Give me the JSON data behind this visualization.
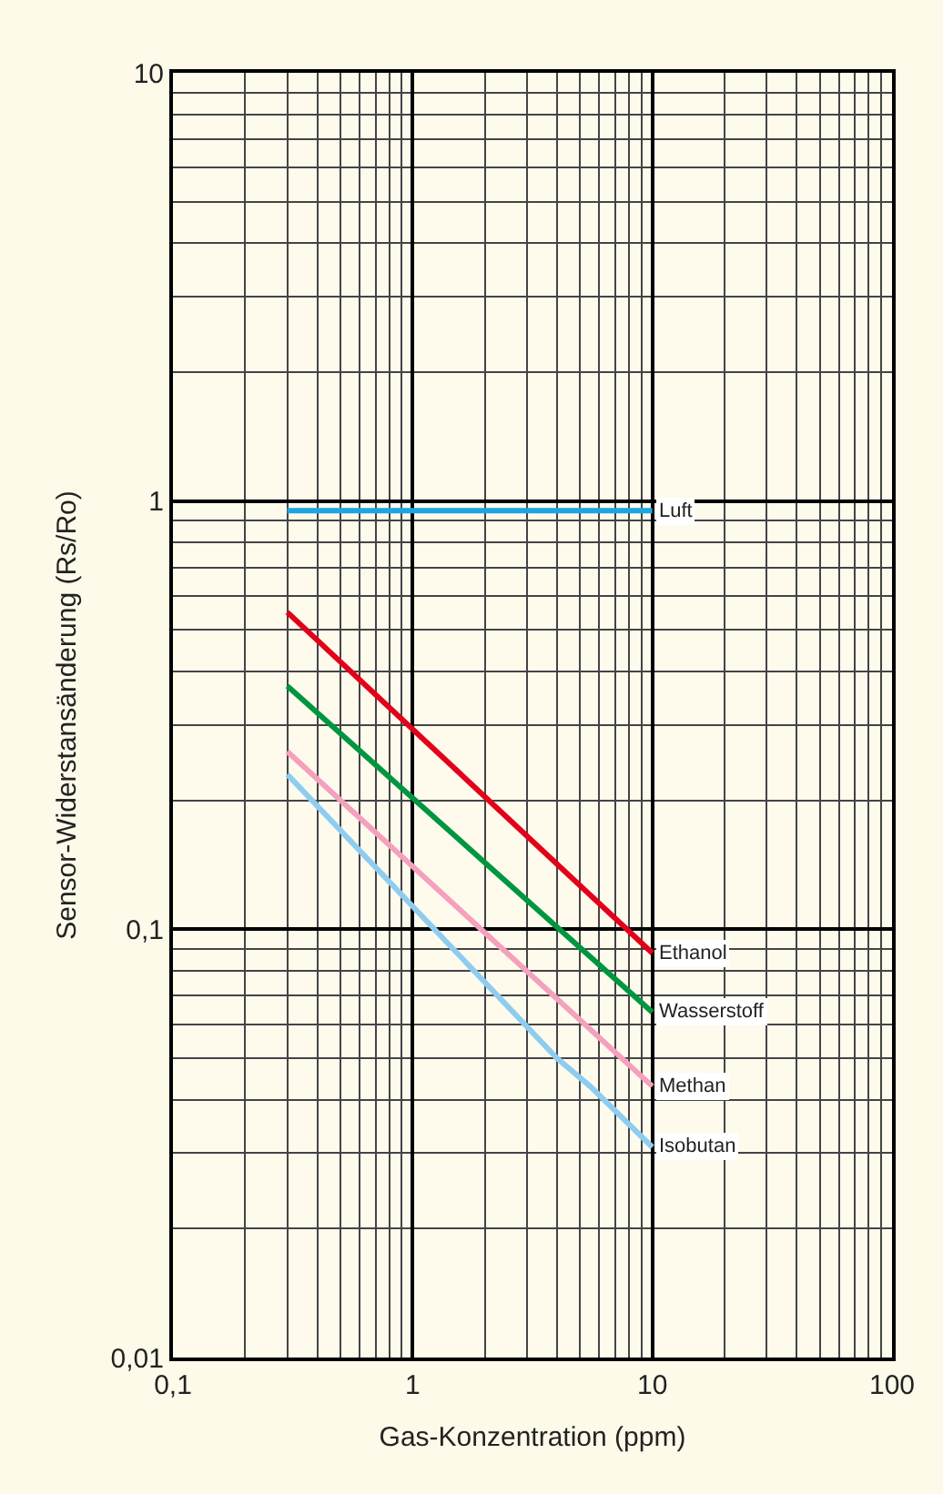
{
  "chart_data": {
    "type": "line",
    "xlabel": "Gas-Konzentration (ppm)",
    "ylabel": "Sensor-Widerstansänderung (Rs/Ro)",
    "log": "xy",
    "grid": true,
    "legend": false,
    "xlim": [
      0.1,
      100
    ],
    "ylim": [
      0.01,
      10
    ],
    "xticks": [
      {
        "value": 0.1,
        "label": "0,1"
      },
      1,
      10,
      100
    ],
    "yticks": [
      {
        "value": 0.01,
        "label": "0,01"
      },
      {
        "value": 0.1,
        "label": "0,1"
      },
      1,
      10
    ],
    "series": [
      {
        "name": "Luft",
        "color": "#1aa7e0",
        "x": [
          0.3,
          10
        ],
        "values": [
          0.95,
          0.95
        ]
      },
      {
        "name": "Ethanol",
        "color": "#e2001a",
        "x": [
          0.3,
          10
        ],
        "values": [
          0.55,
          0.088
        ]
      },
      {
        "name": "Wasserstoff",
        "color": "#009640",
        "x": [
          0.3,
          10
        ],
        "values": [
          0.37,
          0.064
        ]
      },
      {
        "name": "Methan",
        "color": "#f5a0bd",
        "x": [
          0.3,
          10
        ],
        "values": [
          0.26,
          0.043
        ]
      },
      {
        "name": "Isobutan",
        "color": "#8ecdf0",
        "x": [
          0.3,
          4,
          5.5,
          10
        ],
        "values": [
          0.23,
          0.05,
          0.043,
          0.031
        ]
      }
    ]
  }
}
